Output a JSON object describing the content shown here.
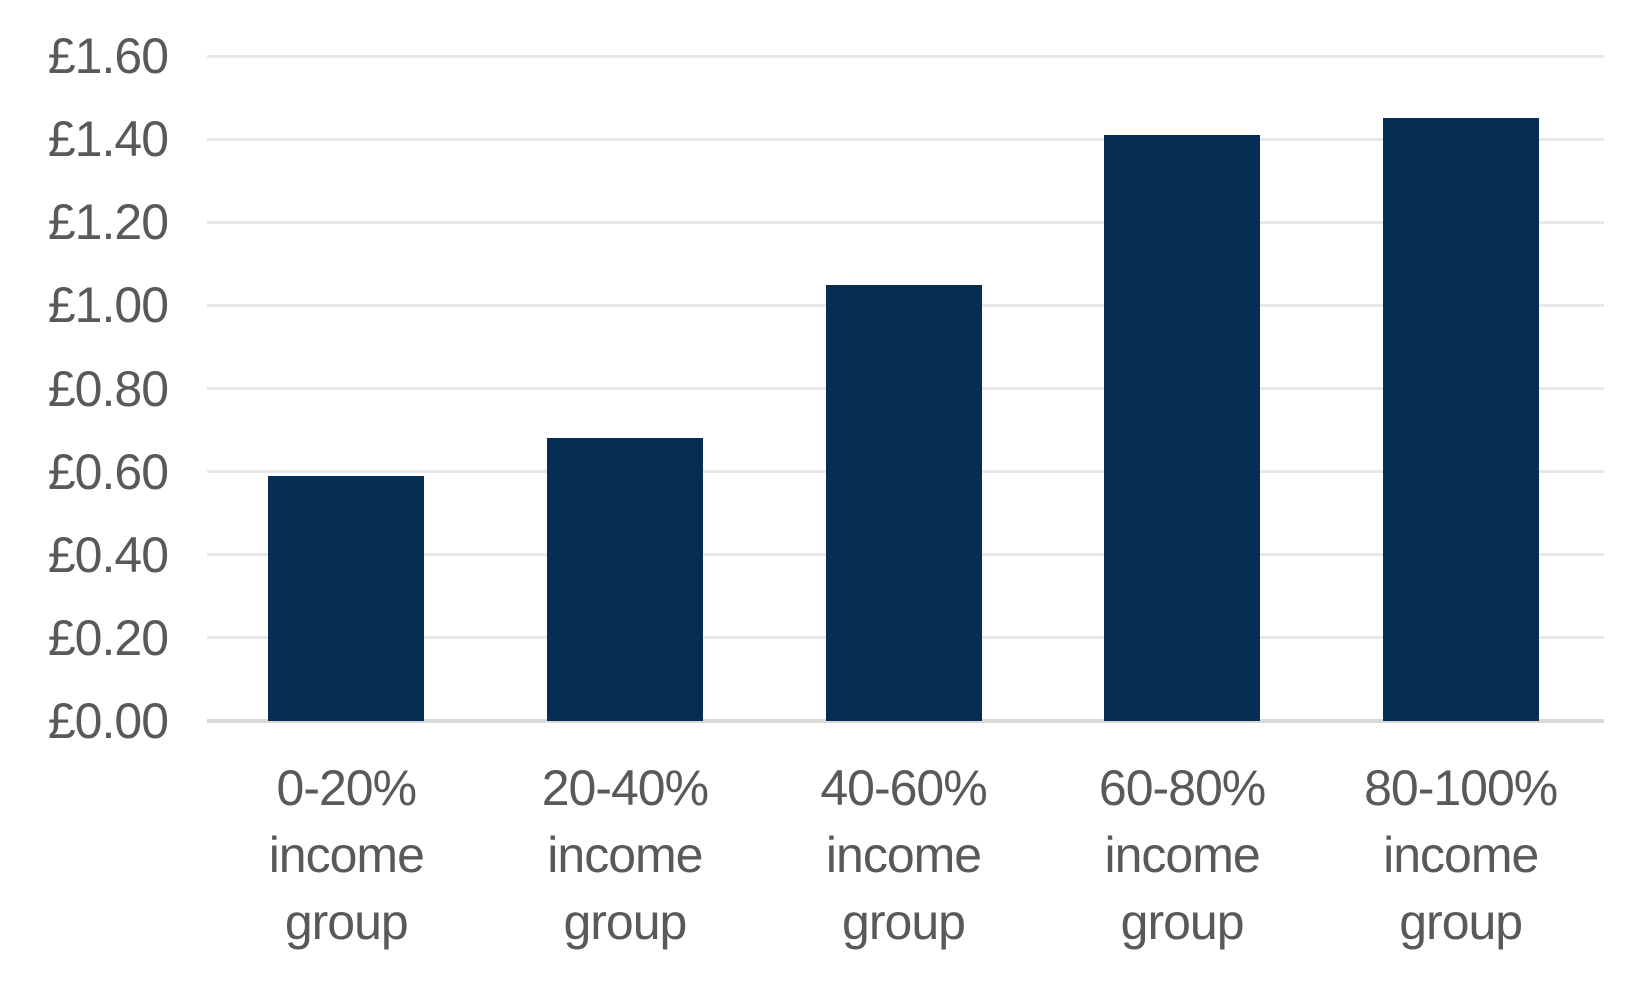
{
  "chart_data": {
    "type": "bar",
    "categories": [
      "0-20% income group",
      "20-40% income group",
      "40-60% income group",
      "60-80% income group",
      "80-100% income group"
    ],
    "values": [
      0.59,
      0.68,
      1.05,
      1.41,
      1.45
    ],
    "series_name": "",
    "y_tick_labels": [
      "£0.00",
      "£0.20",
      "£0.40",
      "£0.60",
      "£0.80",
      "£1.00",
      "£1.20",
      "£1.40",
      "£1.60"
    ],
    "y_tick_values": [
      0,
      0.2,
      0.4,
      0.6,
      0.8,
      1.0,
      1.2,
      1.4,
      1.6
    ],
    "ylim": [
      0,
      1.6
    ],
    "currency_prefix": "£",
    "grid": true,
    "legend_position": "none",
    "bar_color": "#052e52",
    "grid_color": "#e8e8e8",
    "axis_line_color": "#d9d9d9",
    "text_color": "#595959"
  }
}
